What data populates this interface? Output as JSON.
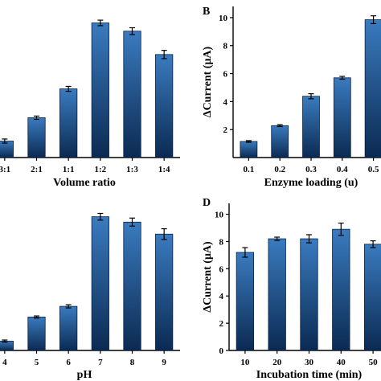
{
  "colors": {
    "bar_light": "#3a7bbf",
    "bar_dark": "#0b2a52",
    "axis": "#000000"
  },
  "chart_data": [
    {
      "type": "bar",
      "panel_label": "",
      "categories": [
        "3:1",
        "2:1",
        "1:1",
        "1:2",
        "1:3",
        "1:4"
      ],
      "values": [
        1.2,
        2.9,
        5.0,
        9.8,
        9.2,
        7.5
      ],
      "errors": [
        0.15,
        0.12,
        0.18,
        0.2,
        0.25,
        0.3
      ],
      "xlabel": "Volume ratio",
      "ylabel": "",
      "ylim": [
        0,
        11
      ],
      "yticks": []
    },
    {
      "type": "bar",
      "panel_label": "B",
      "categories": [
        "0.1",
        "0.2",
        "0.3",
        "0.4",
        "0.5"
      ],
      "values": [
        1.15,
        2.28,
        4.38,
        5.7,
        9.85
      ],
      "errors": [
        0.06,
        0.07,
        0.18,
        0.1,
        0.28
      ],
      "xlabel": "Enzyme loading (u)",
      "ylabel": "ΔCurrent (μA)",
      "ylim": [
        0,
        10.8
      ],
      "yticks": [
        2,
        4,
        6,
        8,
        10
      ]
    },
    {
      "type": "bar",
      "panel_label": "",
      "categories": [
        "4",
        "5",
        "6",
        "7",
        "8",
        "9"
      ],
      "values": [
        0.7,
        2.5,
        3.3,
        10.0,
        9.6,
        8.7
      ],
      "errors": [
        0.08,
        0.08,
        0.12,
        0.25,
        0.3,
        0.4
      ],
      "xlabel": "pH",
      "ylabel": "",
      "ylim": [
        0,
        11
      ],
      "yticks": []
    },
    {
      "type": "bar",
      "panel_label": "D",
      "categories": [
        "10",
        "20",
        "30",
        "40",
        "50"
      ],
      "values": [
        7.2,
        8.2,
        8.2,
        8.9,
        7.8
      ],
      "errors": [
        0.35,
        0.12,
        0.3,
        0.45,
        0.25
      ],
      "xlabel": "Incubation time (min)",
      "ylabel": "ΔCurrent (μA)",
      "ylim": [
        0,
        10.8
      ],
      "yticks": [
        0,
        2,
        4,
        6,
        8,
        10
      ]
    }
  ]
}
